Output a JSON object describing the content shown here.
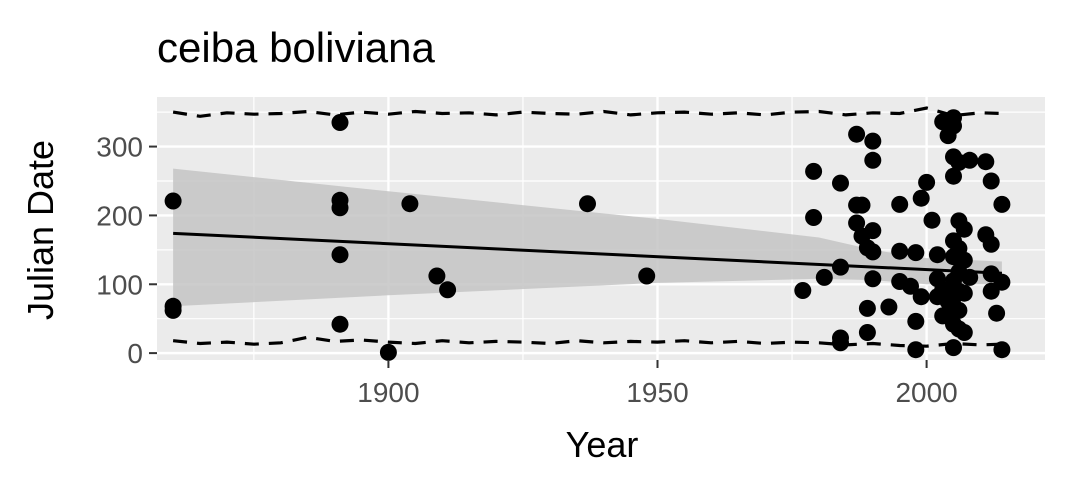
{
  "chart_data": {
    "type": "scatter",
    "title": "ceiba boliviana",
    "xlabel": "Year",
    "ylabel": "Julian Date",
    "xlim": [
      1857,
      2022
    ],
    "ylim": [
      -10,
      372
    ],
    "x_ticks": [
      1900,
      1950,
      2000
    ],
    "y_ticks": [
      0,
      100,
      200,
      300
    ],
    "grid": true,
    "legend": "none",
    "colors": {
      "panel": "#ebebeb",
      "grid": "#ffffff",
      "points": "#000000",
      "ribbon": "#c4c4c4",
      "tick": "#333333",
      "tick_label": "#4d4d4d"
    },
    "points": [
      [
        1860,
        221
      ],
      [
        1860,
        68
      ],
      [
        1860,
        62
      ],
      [
        1891,
        335
      ],
      [
        1891,
        222
      ],
      [
        1891,
        211
      ],
      [
        1891,
        143
      ],
      [
        1891,
        42
      ],
      [
        1900,
        1
      ],
      [
        1904,
        217
      ],
      [
        1909,
        112
      ],
      [
        1911,
        92
      ],
      [
        1937,
        217
      ],
      [
        1948,
        112
      ],
      [
        1977,
        91
      ],
      [
        1979,
        264
      ],
      [
        1979,
        197
      ],
      [
        1981,
        110
      ],
      [
        1984,
        247
      ],
      [
        1984,
        125
      ],
      [
        1984,
        22
      ],
      [
        1984,
        15
      ],
      [
        1987,
        318
      ],
      [
        1987,
        215
      ],
      [
        1987,
        189
      ],
      [
        1988,
        170
      ],
      [
        1988,
        215
      ],
      [
        1989,
        153
      ],
      [
        1989,
        65
      ],
      [
        1989,
        30
      ],
      [
        1990,
        308
      ],
      [
        1990,
        280
      ],
      [
        1990,
        178
      ],
      [
        1990,
        147
      ],
      [
        1990,
        108
      ],
      [
        1993,
        67
      ],
      [
        1995,
        216
      ],
      [
        1995,
        148
      ],
      [
        1995,
        104
      ],
      [
        1997,
        97
      ],
      [
        1998,
        146
      ],
      [
        1998,
        46
      ],
      [
        1998,
        5
      ],
      [
        1999,
        82
      ],
      [
        1999,
        225
      ],
      [
        2000,
        248
      ],
      [
        2001,
        193
      ],
      [
        2002,
        143
      ],
      [
        2002,
        108
      ],
      [
        2002,
        82
      ],
      [
        2003,
        336
      ],
      [
        2003,
        92
      ],
      [
        2003,
        54
      ],
      [
        2004,
        316
      ],
      [
        2004,
        75
      ],
      [
        2004,
        58
      ],
      [
        2005,
        342
      ],
      [
        2005,
        330
      ],
      [
        2005,
        285
      ],
      [
        2005,
        257
      ],
      [
        2005,
        163
      ],
      [
        2005,
        140
      ],
      [
        2005,
        105
      ],
      [
        2005,
        81
      ],
      [
        2005,
        68
      ],
      [
        2005,
        42
      ],
      [
        2005,
        8
      ],
      [
        2006,
        277
      ],
      [
        2006,
        192
      ],
      [
        2006,
        152
      ],
      [
        2006,
        118
      ],
      [
        2006,
        90
      ],
      [
        2006,
        62
      ],
      [
        2006,
        35
      ],
      [
        2007,
        180
      ],
      [
        2007,
        135
      ],
      [
        2007,
        87
      ],
      [
        2007,
        30
      ],
      [
        2008,
        280
      ],
      [
        2008,
        110
      ],
      [
        2011,
        278
      ],
      [
        2011,
        172
      ],
      [
        2012,
        250
      ],
      [
        2012,
        158
      ],
      [
        2012,
        115
      ],
      [
        2012,
        90
      ],
      [
        2013,
        58
      ],
      [
        2014,
        216
      ],
      [
        2014,
        103
      ],
      [
        2014,
        5
      ]
    ],
    "trend_line": {
      "x": [
        1860,
        2014
      ],
      "y": [
        174,
        116
      ]
    },
    "confidence_band": {
      "x": [
        1860,
        1900,
        1950,
        1980,
        1990,
        2000,
        2014
      ],
      "upper": [
        268,
        235,
        195,
        168,
        150,
        138,
        133
      ],
      "lower": [
        68,
        84,
        102,
        108,
        106,
        100,
        100
      ]
    },
    "upper_quantile_line": {
      "x": [
        1860,
        1865,
        1870,
        1875,
        1880,
        1885,
        1890,
        1895,
        1900,
        1905,
        1910,
        1915,
        1920,
        1925,
        1930,
        1935,
        1940,
        1945,
        1950,
        1955,
        1960,
        1965,
        1970,
        1975,
        1980,
        1985,
        1990,
        1995,
        2000,
        2005,
        2010,
        2014
      ],
      "y": [
        350,
        344,
        349,
        347,
        348,
        351,
        346,
        350,
        347,
        351,
        348,
        349,
        346,
        350,
        348,
        347,
        351,
        346,
        349,
        350,
        347,
        349,
        346,
        350,
        351,
        346,
        349,
        348,
        356,
        345,
        349,
        348
      ]
    },
    "lower_quantile_line": {
      "x": [
        1860,
        1865,
        1870,
        1875,
        1880,
        1885,
        1890,
        1895,
        1900,
        1905,
        1910,
        1915,
        1920,
        1925,
        1930,
        1935,
        1940,
        1945,
        1950,
        1955,
        1960,
        1965,
        1970,
        1975,
        1980,
        1985,
        1990,
        1995,
        2000,
        2005,
        2010,
        2014
      ],
      "y": [
        18,
        14,
        16,
        13,
        15,
        23,
        17,
        19,
        16,
        14,
        18,
        15,
        17,
        16,
        14,
        18,
        15,
        17,
        16,
        18,
        15,
        17,
        14,
        16,
        15,
        12,
        14,
        11,
        10,
        14,
        12,
        13
      ]
    }
  }
}
